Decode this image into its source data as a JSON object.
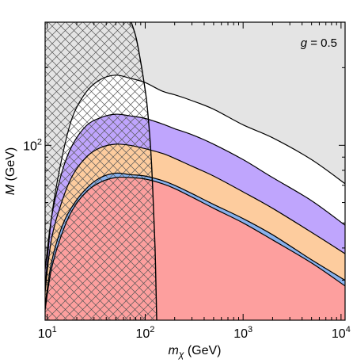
{
  "chart_data": {
    "type": "area",
    "xscale": "log",
    "yscale": "log",
    "xlim": [
      9.5,
      11000
    ],
    "ylim": [
      21,
      300
    ],
    "xlabel": {
      "base": "m",
      "subscript": "χ",
      "unit": " (GeV)"
    },
    "ylabel": {
      "italic": "M",
      "unit": " (GeV)"
    },
    "xticks": [
      {
        "value": 10,
        "base": "10",
        "exp": "1"
      },
      {
        "value": 100,
        "base": "10",
        "exp": "2"
      },
      {
        "value": 1000,
        "base": "10",
        "exp": "3"
      },
      {
        "value": 10000,
        "base": "10",
        "exp": "4"
      }
    ],
    "yticks": [
      {
        "value": 100,
        "base": "10",
        "exp": "2"
      }
    ],
    "annotation": {
      "italic": "g",
      "text": " = 0.5"
    },
    "colors": {
      "gray": "#e4e4e4",
      "white": "#ffffff",
      "purple": "#bfa5fd",
      "orange": "#fdcc9e",
      "blue": "#88b1ec",
      "red": "#fd9f9e",
      "line": "#000000",
      "hatch": "#555555"
    },
    "bands": [
      {
        "id": "white-band",
        "color_key": "white",
        "x": [
          9.5,
          11,
          14,
          18,
          25,
          35,
          50,
          70,
          100,
          150,
          200,
          300,
          500,
          1000,
          2000,
          5000,
          11000
        ],
        "y": [
          28,
          52,
          88,
          128,
          161,
          180,
          187,
          182,
          175,
          162,
          157,
          149,
          138,
          120,
          107,
          88,
          71
        ]
      },
      {
        "id": "purple-band",
        "color_key": "purple",
        "x": [
          9.5,
          11,
          14,
          18,
          25,
          35,
          50,
          70,
          100,
          150,
          200,
          300,
          500,
          1000,
          2000,
          5000,
          11000
        ],
        "y": [
          33,
          52,
          78,
          100,
          119,
          128,
          132,
          130,
          127,
          121,
          116,
          110,
          101,
          88,
          75,
          61,
          49
        ]
      },
      {
        "id": "orange-band",
        "color_key": "orange",
        "x": [
          9.5,
          11,
          14,
          18,
          25,
          35,
          50,
          70,
          100,
          150,
          200,
          300,
          500,
          1000,
          2000,
          5000,
          11000
        ],
        "y": [
          27,
          43,
          60,
          76,
          90,
          98,
          101,
          100,
          97,
          93,
          89,
          83,
          76,
          66,
          57,
          46,
          38
        ]
      },
      {
        "id": "blue-band",
        "color_key": "blue",
        "x": [
          9.5,
          11,
          14,
          18,
          25,
          35,
          50,
          70,
          100,
          150,
          200,
          300,
          500,
          1000,
          2000,
          5000,
          11000
        ],
        "y": [
          24,
          35,
          48,
          58,
          68,
          75,
          78,
          77,
          76,
          73,
          70,
          65,
          59,
          52,
          45,
          36,
          30
        ]
      },
      {
        "id": "red-band",
        "color_key": "red",
        "x": [
          9.5,
          11,
          14,
          18,
          25,
          35,
          50,
          70,
          100,
          150,
          200,
          300,
          500,
          1000,
          2000,
          5000,
          11000
        ],
        "y": [
          23,
          33,
          45,
          56,
          66,
          72,
          75,
          75,
          74,
          71,
          68,
          63,
          57,
          50,
          43,
          35,
          28.5
        ]
      }
    ],
    "hatched_region": {
      "id": "hatched-excluded",
      "boundary_x": [
        9.5,
        11,
        14,
        18,
        25,
        35,
        50,
        70,
        100,
        150,
        200,
        300,
        500,
        1000,
        2000,
        5000,
        11000
      ],
      "boundary_y": [
        28,
        52,
        88,
        128,
        161,
        180,
        187,
        182,
        175,
        162,
        157,
        149,
        138,
        120,
        107,
        88,
        71
      ],
      "note": "cross-hatched left of the vertical boundary curve"
    },
    "vertical_boundary": {
      "id": "relic-boundary",
      "x": [
        72,
        81,
        92,
        103,
        111,
        117,
        122,
        126,
        129,
        131
      ],
      "y": [
        300,
        260,
        200,
        150,
        110,
        80,
        55,
        40,
        28,
        21
      ]
    }
  }
}
